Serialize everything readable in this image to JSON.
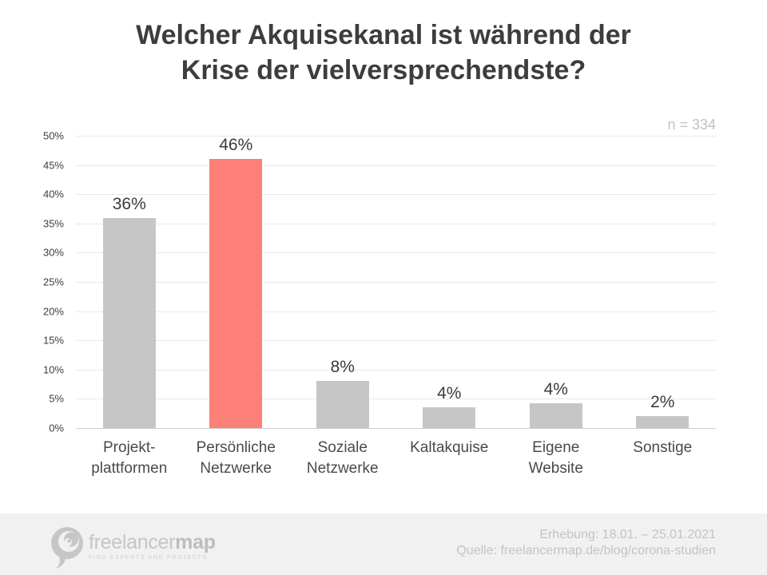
{
  "header": {
    "title_lines": [
      "Welcher Akquisekanal ist während der",
      "Krise der vielversprechendste?"
    ]
  },
  "chart_data": {
    "type": "bar",
    "title": "Welcher Akquisekanal ist während der Krise der vielversprechendste?",
    "sample_size_label": "n = 334",
    "categories": [
      [
        "Projekt-",
        "plattformen"
      ],
      [
        "Persönliche",
        "Netzwerke"
      ],
      [
        "Soziale",
        "Netzwerke"
      ],
      [
        "Kaltakquise"
      ],
      [
        "Eigene",
        "Website"
      ],
      [
        "Sonstige"
      ]
    ],
    "values": [
      36,
      46,
      8,
      4,
      4,
      2
    ],
    "value_labels": [
      "36%",
      "46%",
      "8%",
      "4%",
      "4%",
      "2%"
    ],
    "values_precise": [
      35.9,
      46,
      8.1,
      3.6,
      4.3,
      2.1
    ],
    "highlight_index": 1,
    "bar_color": "#c6c6c6",
    "highlight_color": "#fc8077",
    "xlabel": "",
    "ylabel": "",
    "y_axis": {
      "min": 0,
      "max": 50,
      "step": 5,
      "tick_suffix": "%"
    },
    "grid": true,
    "legend": "none"
  },
  "footer": {
    "logo": {
      "brand_light": "freelancer",
      "brand_bold": "map",
      "tagline": "FIND EXPERTS AND PROJECTS"
    },
    "survey_period": "Erhebung: 18.01. – 25.01.2021",
    "source": "Quelle: freelancermap.de/blog/corona-studien"
  }
}
